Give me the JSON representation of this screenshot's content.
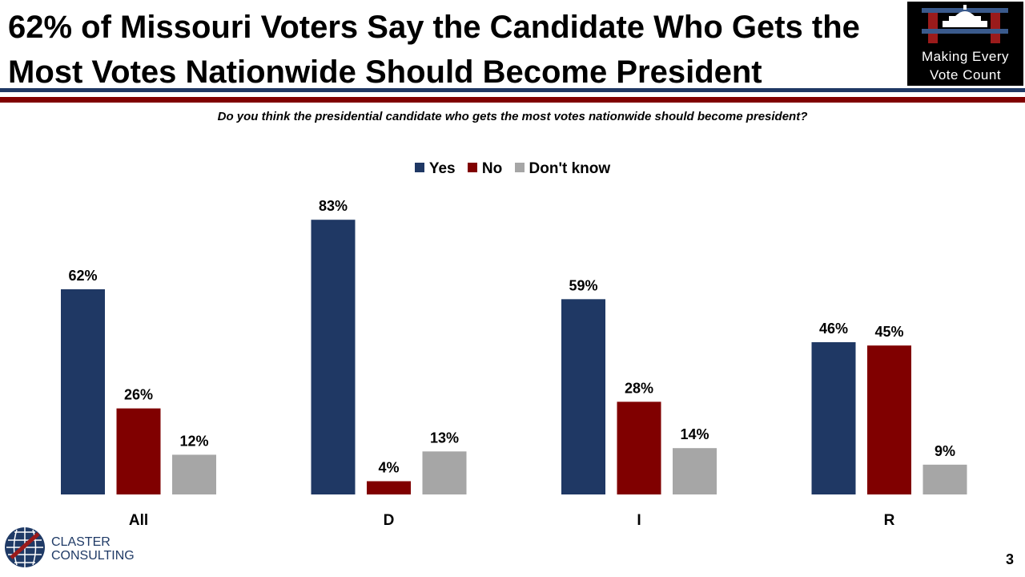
{
  "header": {
    "title": "62% of Missouri Voters Say the Candidate Who Gets the Most Votes Nationwide Should Become President",
    "logo_line1": "Making Every",
    "logo_line2": "Vote Count"
  },
  "question": "Do you think the presidential candidate who gets the most votes nationwide should become president?",
  "footer": {
    "company_line1": "CLASTER",
    "company_line2": "CONSULTING",
    "page_number": "3"
  },
  "colors": {
    "yes": "#1f3864",
    "no": "#800000",
    "dont_know": "#a6a6a6",
    "rule_navy": "#1f3864",
    "rule_red": "#800000"
  },
  "chart_data": {
    "type": "bar",
    "categories": [
      "All",
      "D",
      "I",
      "R"
    ],
    "series": [
      {
        "name": "Yes",
        "values": [
          62,
          83,
          59,
          46
        ],
        "labels": [
          "62%",
          "83%",
          "59%",
          "46%"
        ],
        "color": "#1f3864"
      },
      {
        "name": "No",
        "values": [
          26,
          4,
          28,
          45
        ],
        "labels": [
          "26%",
          "4%",
          "28%",
          "45%"
        ],
        "color": "#800000"
      },
      {
        "name": "Don't know",
        "values": [
          12,
          13,
          14,
          9
        ],
        "labels": [
          "12%",
          "13%",
          "14%",
          "9%"
        ],
        "color": "#a6a6a6"
      }
    ],
    "legend_position": "top-center",
    "grid": false,
    "ylim": [
      0,
      100
    ]
  }
}
